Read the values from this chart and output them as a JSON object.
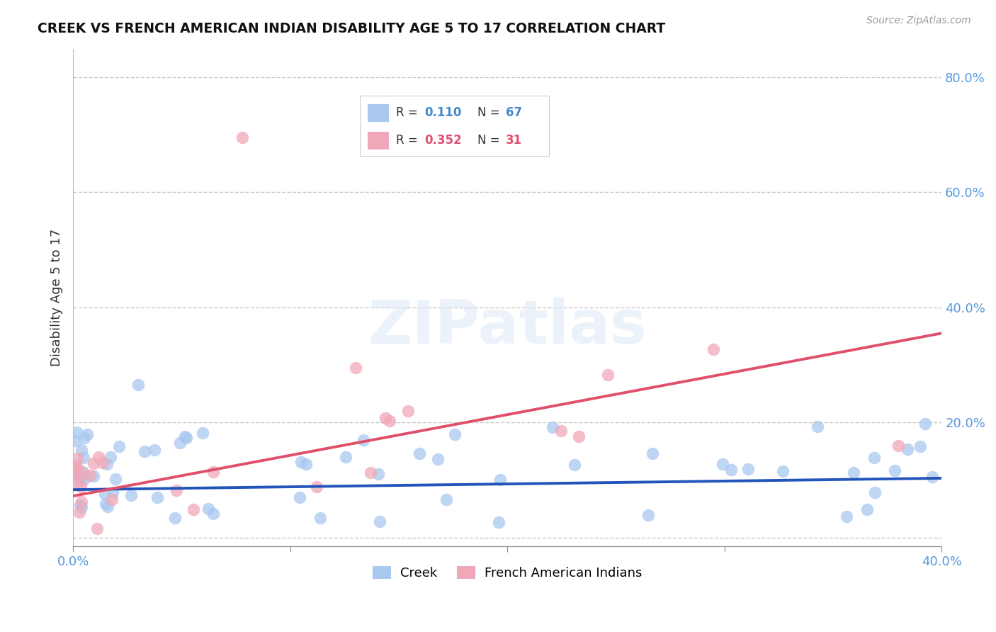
{
  "title": "CREEK VS FRENCH AMERICAN INDIAN DISABILITY AGE 5 TO 17 CORRELATION CHART",
  "source": "Source: ZipAtlas.com",
  "ylabel": "Disability Age 5 to 17",
  "xlim": [
    0.0,
    0.4
  ],
  "ylim": [
    -0.015,
    0.85
  ],
  "ytick_vals": [
    0.0,
    0.2,
    0.4,
    0.6,
    0.8
  ],
  "ytick_labels": [
    "",
    "20.0%",
    "40.0%",
    "60.0%",
    "80.0%"
  ],
  "xtick_vals": [
    0.0,
    0.1,
    0.2,
    0.3,
    0.4
  ],
  "xtick_labels": [
    "0.0%",
    "",
    "",
    "",
    "40.0%"
  ],
  "grid_color": "#c8c8c8",
  "bg_color": "#ffffff",
  "creek_color": "#a8c8f0",
  "creek_line_color": "#2255bb",
  "french_color": "#f0a8b8",
  "french_line_color": "#e0506a",
  "legend_R_creek": "0.110",
  "legend_N_creek": "67",
  "legend_R_french": "0.352",
  "legend_N_french": "31",
  "creek_line_x0": 0.0,
  "creek_line_y0": 0.083,
  "creek_line_x1": 0.4,
  "creek_line_y1": 0.103,
  "french_line_x0": 0.0,
  "french_line_y0": 0.072,
  "french_line_x1": 0.4,
  "french_line_y1": 0.355
}
